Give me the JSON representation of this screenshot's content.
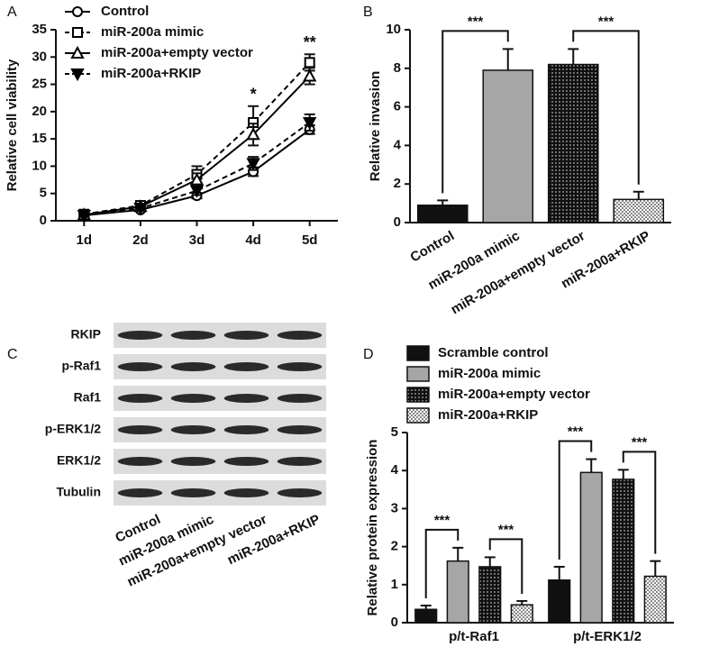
{
  "chart_data": [
    {
      "type": "line",
      "panel_label": "A",
      "y_label": "Relative cell viability",
      "categories": [
        "1d",
        "2d",
        "3d",
        "4d",
        "5d"
      ],
      "ylim": [
        0,
        35
      ],
      "yticks": [
        0,
        5,
        10,
        15,
        20,
        25,
        30,
        35
      ],
      "legend": "top-left",
      "series": [
        {
          "name": "Control",
          "color": "#000000",
          "marker": "circle",
          "dashed": false,
          "values": [
            1.0,
            2.0,
            4.6,
            9.0,
            16.7
          ],
          "errors": [
            0.3,
            0.3,
            0.5,
            0.8,
            0.8
          ]
        },
        {
          "name": "miR-200a mimic",
          "color": "#000000",
          "marker": "square",
          "dashed": true,
          "values": [
            1.2,
            2.8,
            8.5,
            18.0,
            29.0
          ],
          "errors": [
            0.4,
            0.5,
            1.5,
            3.0,
            1.5
          ]
        },
        {
          "name": "miR-200a+empty vector",
          "color": "#000000",
          "marker": "triangle",
          "dashed": false,
          "values": [
            1.1,
            2.6,
            7.5,
            15.8,
            26.5
          ],
          "errors": [
            0.3,
            0.5,
            1.2,
            2.0,
            1.5
          ]
        },
        {
          "name": "miR-200a+RKIP",
          "color": "#000000",
          "marker": "triangle-down",
          "dashed": true,
          "values": [
            1.0,
            2.3,
            5.5,
            10.5,
            18.0
          ],
          "errors": [
            0.3,
            0.4,
            0.8,
            1.2,
            1.5
          ]
        }
      ],
      "annotations": [
        {
          "category": "4d",
          "label": "*"
        },
        {
          "category": "5d",
          "label": "**"
        }
      ]
    },
    {
      "type": "bar",
      "panel_label": "B",
      "y_label": "Relative invasion",
      "categories": [
        "Control",
        "miR-200a mimic",
        "miR-200a+empty vector",
        "miR-200a+RKIP"
      ],
      "values": [
        0.9,
        7.9,
        8.2,
        1.2
      ],
      "errors": [
        0.25,
        1.1,
        0.8,
        0.4
      ],
      "colors": [
        "#111111",
        "#a6a6a6",
        "#111111",
        "#ffffff"
      ],
      "patterns": [
        "solid",
        "solid",
        "dots",
        "checker"
      ],
      "ylim": [
        0,
        10
      ],
      "yticks": [
        0,
        2,
        4,
        6,
        8,
        10
      ],
      "brackets": [
        {
          "from": "Control",
          "to": "miR-200a mimic",
          "label": "***"
        },
        {
          "from": "miR-200a+empty vector",
          "to": "miR-200a+RKIP",
          "label": "***"
        }
      ]
    },
    {
      "type": "grouped-bar",
      "panel_label": "D",
      "y_label": "Relative protein expression",
      "categories": [
        "p/t-Raf1",
        "p/t-ERK1/2"
      ],
      "ylim": [
        0,
        5
      ],
      "yticks": [
        0,
        1,
        2,
        3,
        4,
        5
      ],
      "legend": "top-left",
      "series": [
        {
          "name": "Scramble control",
          "color": "#111111",
          "pattern": "solid",
          "values": [
            0.35,
            1.12
          ],
          "errors": [
            0.1,
            0.35
          ]
        },
        {
          "name": "miR-200a mimic",
          "color": "#a6a6a6",
          "pattern": "solid",
          "values": [
            1.62,
            3.95
          ],
          "errors": [
            0.35,
            0.35
          ]
        },
        {
          "name": "miR-200a+empty vector",
          "color": "#111111",
          "pattern": "dots",
          "values": [
            1.47,
            3.77
          ],
          "errors": [
            0.25,
            0.25
          ]
        },
        {
          "name": "miR-200a+RKIP",
          "color": "#ffffff",
          "pattern": "checker",
          "values": [
            0.47,
            1.22
          ],
          "errors": [
            0.1,
            0.4
          ]
        }
      ],
      "brackets": [
        {
          "group": "p/t-Raf1",
          "from": "Scramble control",
          "to": "miR-200a mimic",
          "label": "***"
        },
        {
          "group": "p/t-Raf1",
          "from": "miR-200a+empty vector",
          "to": "miR-200a+RKIP",
          "label": "***"
        },
        {
          "group": "p/t-ERK1/2",
          "from": "Scramble control",
          "to": "miR-200a mimic",
          "label": "***"
        },
        {
          "group": "p/t-ERK1/2",
          "from": "miR-200a+empty vector",
          "to": "miR-200a+RKIP",
          "label": "***"
        }
      ]
    }
  ],
  "blot": {
    "panel_label": "C",
    "proteins": [
      "RKIP",
      "p-Raf1",
      "Raf1",
      "p-ERK1/2",
      "ERK1/2",
      "Tubulin"
    ],
    "lanes": [
      "Control",
      "miR-200a mimic",
      "miR-200a+empty vector",
      "miR-200a+RKIP"
    ]
  }
}
